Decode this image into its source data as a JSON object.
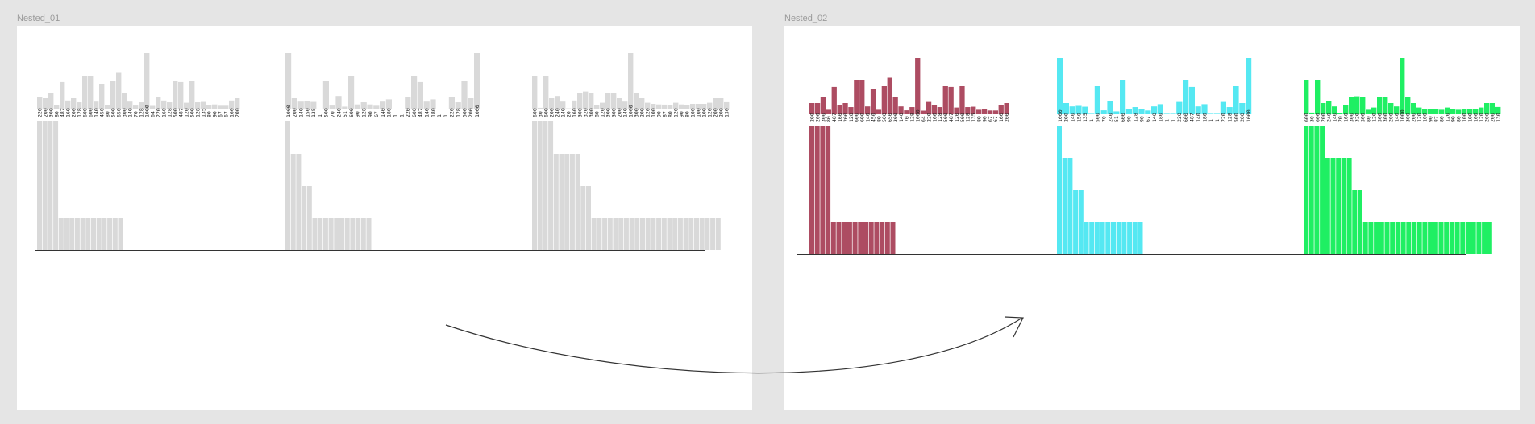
{
  "frames": [
    {
      "title": "Nested_01",
      "colors": [
        "#d9d9d9",
        "#d9d9d9",
        "#d9d9d9"
      ],
      "top_values": [
        [
          220,
          200,
          300,
          80,
          487,
          160,
          200,
          128,
          600,
          600,
          140,
          450,
          80,
          500,
          650,
          300,
          140,
          70,
          128,
          1000,
          64,
          220,
          160,
          128,
          500,
          487,
          120,
          500,
          128,
          135,
          80,
          90,
          67,
          67,
          160,
          200
        ],
        [
          1000,
          200,
          140,
          150,
          135,
          1,
          500,
          70,
          240,
          51,
          600,
          90,
          128,
          90,
          67,
          140,
          180,
          1,
          1,
          220,
          600,
          487,
          140,
          180,
          1,
          1,
          220,
          128,
          500,
          200,
          1000
        ],
        [
          600,
          30,
          600,
          200,
          240,
          140,
          20,
          160,
          300,
          320,
          300,
          80,
          120,
          300,
          300,
          200,
          140,
          1000,
          300,
          200,
          120,
          100,
          90,
          87,
          80,
          120,
          90,
          80,
          100,
          100,
          100,
          120,
          200,
          200,
          130
        ]
      ],
      "bottom_values": [
        [
          1000,
          1000,
          1000,
          1000,
          250,
          250,
          250,
          250,
          250,
          250,
          250,
          250,
          250,
          250,
          250,
          250
        ],
        [
          1000,
          750,
          750,
          500,
          500,
          250,
          250,
          250,
          250,
          250,
          250,
          250,
          250,
          250,
          250,
          250
        ],
        [
          1000,
          1000,
          1000,
          1000,
          750,
          750,
          750,
          750,
          750,
          500,
          500,
          250,
          250,
          250,
          250,
          250,
          250,
          250,
          250,
          250,
          250,
          250,
          250,
          250,
          250,
          250,
          250,
          250,
          250,
          250,
          250,
          250,
          250,
          250,
          250
        ]
      ]
    },
    {
      "title": "Nested_02",
      "colors": [
        "#ad4c62",
        "#55e8f2",
        "#1fef63"
      ],
      "top_values": [
        [
          200,
          200,
          300,
          80,
          487,
          160,
          200,
          128,
          600,
          600,
          140,
          450,
          80,
          500,
          650,
          300,
          140,
          70,
          128,
          1000,
          64,
          220,
          160,
          128,
          500,
          487,
          120,
          500,
          128,
          135,
          80,
          90,
          67,
          67,
          160,
          200
        ],
        [
          1000,
          200,
          140,
          150,
          135,
          1,
          500,
          70,
          240,
          51,
          600,
          90,
          128,
          90,
          67,
          140,
          180,
          1,
          1,
          220,
          600,
          487,
          140,
          180,
          1,
          1,
          220,
          128,
          500,
          200,
          1000
        ],
        [
          600,
          30,
          600,
          200,
          240,
          140,
          20,
          160,
          300,
          320,
          300,
          80,
          120,
          300,
          300,
          200,
          140,
          1000,
          300,
          200,
          120,
          100,
          90,
          87,
          80,
          120,
          90,
          80,
          100,
          100,
          100,
          120,
          200,
          200,
          130
        ]
      ],
      "bottom_values": [
        [
          1000,
          1000,
          1000,
          1000,
          250,
          250,
          250,
          250,
          250,
          250,
          250,
          250,
          250,
          250,
          250,
          250
        ],
        [
          1000,
          750,
          750,
          500,
          500,
          250,
          250,
          250,
          250,
          250,
          250,
          250,
          250,
          250,
          250,
          250
        ],
        [
          1000,
          1000,
          1000,
          1000,
          750,
          750,
          750,
          750,
          750,
          500,
          500,
          250,
          250,
          250,
          250,
          250,
          250,
          250,
          250,
          250,
          250,
          250,
          250,
          250,
          250,
          250,
          250,
          250,
          250,
          250,
          250,
          250,
          250,
          250,
          250
        ]
      ]
    }
  ]
}
